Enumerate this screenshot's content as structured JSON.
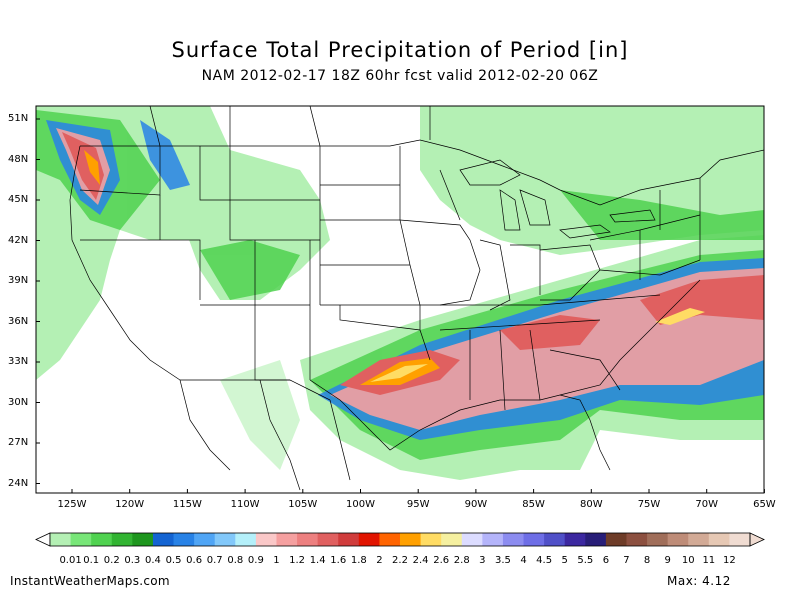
{
  "header": {
    "title": "Surface Total Precipitation of Period [in]",
    "subtitle": "NAM 2012-02-17 18Z 60hr fcst valid 2012-02-20 06Z"
  },
  "map": {
    "lat_labels": [
      "51N",
      "48N",
      "45N",
      "42N",
      "39N",
      "36N",
      "33N",
      "30N",
      "27N",
      "24N"
    ],
    "lon_labels": [
      "125W",
      "120W",
      "115W",
      "110W",
      "105W",
      "100W",
      "95W",
      "90W",
      "85W",
      "80W",
      "75W",
      "70W",
      "65W"
    ]
  },
  "legend": {
    "labels": [
      "0.01",
      "0.1",
      "0.2",
      "0.3",
      "0.4",
      "0.5",
      "0.6",
      "0.7",
      "0.8",
      "0.9",
      "1",
      "1.2",
      "1.4",
      "1.6",
      "1.8",
      "2",
      "2.2",
      "2.4",
      "2.6",
      "2.8",
      "3",
      "3.5",
      "4",
      "4.5",
      "5",
      "5.5",
      "6",
      "7",
      "8",
      "9",
      "10",
      "11",
      "12"
    ],
    "colors": [
      "#b4f0b4",
      "#78e678",
      "#50d250",
      "#32b432",
      "#1e961e",
      "#1464d2",
      "#2882e6",
      "#50a5f5",
      "#82c8fa",
      "#b4f0fa",
      "#fac8c8",
      "#f5a0a0",
      "#ed8080",
      "#e06060",
      "#d03c3c",
      "#e11400",
      "#ff6400",
      "#ffa000",
      "#ffdc64",
      "#f5f0a0",
      "#dcdcff",
      "#b4b4fa",
      "#8c8cf0",
      "#6e6ee6",
      "#5050c8",
      "#3c28a0",
      "#281e78",
      "#6e3c28",
      "#8c5040",
      "#a06e5a",
      "#be8c78",
      "#d2aa96",
      "#e6c8b4",
      "#f0dcd2"
    ]
  },
  "footer": {
    "site": "InstantWeatherMaps.com",
    "max_label": "Max:  4.12"
  }
}
